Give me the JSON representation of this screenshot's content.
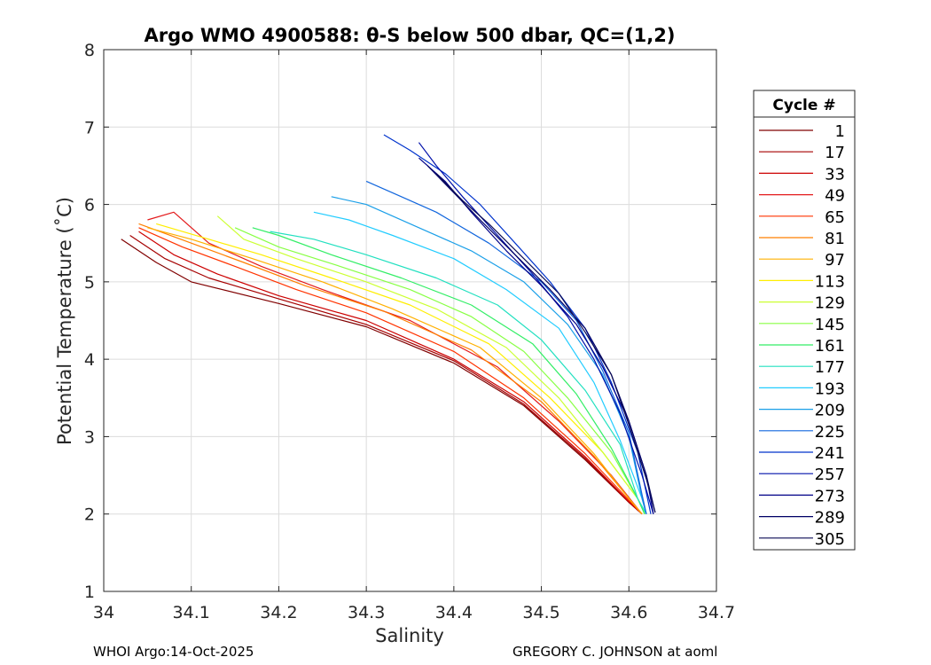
{
  "chart_data": {
    "type": "line",
    "title": "Argo WMO 4900588: θ-S below 500 dbar,  QC=(1,2)",
    "xlabel": "Salinity",
    "ylabel": "Potential Temperature (˚C)",
    "xlim": [
      34,
      34.7
    ],
    "ylim": [
      1,
      8
    ],
    "xticks": [
      34,
      34.1,
      34.2,
      34.3,
      34.4,
      34.5,
      34.6,
      34.7
    ],
    "yticks": [
      1,
      2,
      3,
      4,
      5,
      6,
      7,
      8
    ],
    "xtick_labels": [
      "34",
      "34.1",
      "34.2",
      "34.3",
      "34.4",
      "34.5",
      "34.6",
      "34.7"
    ],
    "ytick_labels": [
      "1",
      "2",
      "3",
      "4",
      "5",
      "6",
      "7",
      "8"
    ],
    "grid": true,
    "legend_title": "Cycle #",
    "legend_position": "right-outside",
    "series": [
      {
        "name": "1",
        "color": "#800000",
        "points": [
          [
            34.02,
            5.55
          ],
          [
            34.06,
            5.25
          ],
          [
            34.1,
            5.0
          ],
          [
            34.2,
            4.72
          ],
          [
            34.3,
            4.42
          ],
          [
            34.4,
            3.95
          ],
          [
            34.48,
            3.4
          ],
          [
            34.55,
            2.7
          ],
          [
            34.6,
            2.15
          ],
          [
            34.615,
            2.0
          ]
        ]
      },
      {
        "name": "17",
        "color": "#a50000",
        "points": [
          [
            34.03,
            5.6
          ],
          [
            34.07,
            5.3
          ],
          [
            34.12,
            5.05
          ],
          [
            34.2,
            4.78
          ],
          [
            34.3,
            4.45
          ],
          [
            34.4,
            3.98
          ],
          [
            34.48,
            3.42
          ],
          [
            34.55,
            2.72
          ],
          [
            34.6,
            2.15
          ],
          [
            34.615,
            2.0
          ]
        ]
      },
      {
        "name": "33",
        "color": "#cc0000",
        "points": [
          [
            34.04,
            5.65
          ],
          [
            34.08,
            5.35
          ],
          [
            34.13,
            5.1
          ],
          [
            34.2,
            4.82
          ],
          [
            34.3,
            4.5
          ],
          [
            34.4,
            4.0
          ],
          [
            34.48,
            3.45
          ],
          [
            34.55,
            2.74
          ],
          [
            34.6,
            2.16
          ],
          [
            34.615,
            2.0
          ]
        ]
      },
      {
        "name": "49",
        "color": "#e31a1c",
        "points": [
          [
            34.05,
            5.8
          ],
          [
            34.08,
            5.9
          ],
          [
            34.12,
            5.5
          ],
          [
            34.18,
            5.2
          ],
          [
            34.25,
            4.9
          ],
          [
            34.35,
            4.5
          ],
          [
            34.45,
            3.9
          ],
          [
            34.52,
            3.2
          ],
          [
            34.58,
            2.5
          ],
          [
            34.615,
            2.0
          ]
        ]
      },
      {
        "name": "65",
        "color": "#ff3300",
        "points": [
          [
            34.04,
            5.7
          ],
          [
            34.09,
            5.45
          ],
          [
            34.15,
            5.2
          ],
          [
            34.22,
            4.9
          ],
          [
            34.3,
            4.6
          ],
          [
            34.4,
            4.1
          ],
          [
            34.48,
            3.5
          ],
          [
            34.55,
            2.78
          ],
          [
            34.6,
            2.18
          ],
          [
            34.615,
            2.0
          ]
        ]
      },
      {
        "name": "81",
        "color": "#ff7f00",
        "points": [
          [
            34.04,
            5.75
          ],
          [
            34.1,
            5.5
          ],
          [
            34.16,
            5.25
          ],
          [
            34.23,
            4.95
          ],
          [
            34.32,
            4.62
          ],
          [
            34.42,
            4.12
          ],
          [
            34.5,
            3.45
          ],
          [
            34.56,
            2.75
          ],
          [
            34.6,
            2.2
          ],
          [
            34.615,
            2.0
          ]
        ]
      },
      {
        "name": "97",
        "color": "#ffb000",
        "points": [
          [
            34.05,
            5.7
          ],
          [
            34.1,
            5.55
          ],
          [
            34.17,
            5.3
          ],
          [
            34.25,
            5.0
          ],
          [
            34.33,
            4.65
          ],
          [
            34.43,
            4.15
          ],
          [
            34.5,
            3.5
          ],
          [
            34.56,
            2.78
          ],
          [
            34.6,
            2.2
          ],
          [
            34.615,
            2.0
          ]
        ]
      },
      {
        "name": "113",
        "color": "#ffee00",
        "points": [
          [
            34.06,
            5.75
          ],
          [
            34.12,
            5.55
          ],
          [
            34.18,
            5.35
          ],
          [
            34.26,
            5.05
          ],
          [
            34.35,
            4.7
          ],
          [
            34.44,
            4.2
          ],
          [
            34.51,
            3.5
          ],
          [
            34.57,
            2.8
          ],
          [
            34.61,
            2.2
          ],
          [
            34.618,
            2.0
          ]
        ]
      },
      {
        "name": "129",
        "color": "#ccff33",
        "points": [
          [
            34.13,
            5.85
          ],
          [
            34.16,
            5.55
          ],
          [
            34.22,
            5.3
          ],
          [
            34.3,
            5.0
          ],
          [
            34.38,
            4.65
          ],
          [
            34.46,
            4.15
          ],
          [
            34.52,
            3.5
          ],
          [
            34.57,
            2.8
          ],
          [
            34.61,
            2.2
          ],
          [
            34.618,
            2.0
          ]
        ]
      },
      {
        "name": "145",
        "color": "#88ff44",
        "points": [
          [
            34.15,
            5.7
          ],
          [
            34.2,
            5.45
          ],
          [
            34.27,
            5.2
          ],
          [
            34.35,
            4.9
          ],
          [
            34.42,
            4.55
          ],
          [
            34.48,
            4.1
          ],
          [
            34.53,
            3.5
          ],
          [
            34.58,
            2.8
          ],
          [
            34.61,
            2.2
          ],
          [
            34.618,
            2.0
          ]
        ]
      },
      {
        "name": "161",
        "color": "#33ee66",
        "points": [
          [
            34.17,
            5.7
          ],
          [
            34.2,
            5.6
          ],
          [
            34.26,
            5.35
          ],
          [
            34.34,
            5.05
          ],
          [
            34.42,
            4.7
          ],
          [
            34.49,
            4.2
          ],
          [
            34.54,
            3.55
          ],
          [
            34.58,
            2.85
          ],
          [
            34.61,
            2.2
          ],
          [
            34.618,
            2.0
          ]
        ]
      },
      {
        "name": "177",
        "color": "#22e0c0",
        "points": [
          [
            34.19,
            5.65
          ],
          [
            34.24,
            5.55
          ],
          [
            34.3,
            5.35
          ],
          [
            34.38,
            5.05
          ],
          [
            34.45,
            4.7
          ],
          [
            34.5,
            4.25
          ],
          [
            34.55,
            3.6
          ],
          [
            34.59,
            2.9
          ],
          [
            34.61,
            2.2
          ],
          [
            34.62,
            2.0
          ]
        ]
      },
      {
        "name": "193",
        "color": "#22ccff",
        "points": [
          [
            34.24,
            5.9
          ],
          [
            34.28,
            5.8
          ],
          [
            34.33,
            5.6
          ],
          [
            34.4,
            5.3
          ],
          [
            34.46,
            4.9
          ],
          [
            34.52,
            4.4
          ],
          [
            34.56,
            3.7
          ],
          [
            34.59,
            2.95
          ],
          [
            34.615,
            2.2
          ],
          [
            34.62,
            2.0
          ]
        ]
      },
      {
        "name": "209",
        "color": "#1a9fe8",
        "points": [
          [
            34.26,
            6.1
          ],
          [
            34.3,
            6.0
          ],
          [
            34.36,
            5.7
          ],
          [
            34.42,
            5.4
          ],
          [
            34.48,
            5.0
          ],
          [
            34.53,
            4.45
          ],
          [
            34.57,
            3.8
          ],
          [
            34.6,
            3.0
          ],
          [
            34.615,
            2.2
          ],
          [
            34.62,
            2.0
          ]
        ]
      },
      {
        "name": "225",
        "color": "#1166dd",
        "points": [
          [
            34.3,
            6.3
          ],
          [
            34.34,
            6.1
          ],
          [
            34.38,
            5.9
          ],
          [
            34.44,
            5.5
          ],
          [
            34.5,
            5.0
          ],
          [
            34.54,
            4.5
          ],
          [
            34.57,
            3.85
          ],
          [
            34.6,
            3.05
          ],
          [
            34.615,
            2.25
          ],
          [
            34.62,
            2.0
          ]
        ]
      },
      {
        "name": "241",
        "color": "#0033cc",
        "points": [
          [
            34.32,
            6.9
          ],
          [
            34.35,
            6.7
          ],
          [
            34.39,
            6.4
          ],
          [
            34.43,
            6.0
          ],
          [
            34.47,
            5.5
          ],
          [
            34.51,
            5.0
          ],
          [
            34.55,
            4.4
          ],
          [
            34.58,
            3.7
          ],
          [
            34.61,
            2.8
          ],
          [
            34.625,
            2.0
          ]
        ]
      },
      {
        "name": "257",
        "color": "#0010aa",
        "points": [
          [
            34.36,
            6.8
          ],
          [
            34.38,
            6.5
          ],
          [
            34.41,
            6.1
          ],
          [
            34.45,
            5.6
          ],
          [
            34.49,
            5.1
          ],
          [
            34.53,
            4.55
          ],
          [
            34.56,
            4.0
          ],
          [
            34.59,
            3.3
          ],
          [
            34.615,
            2.5
          ],
          [
            34.628,
            2.0
          ]
        ]
      },
      {
        "name": "273",
        "color": "#000088",
        "points": [
          [
            34.36,
            6.6
          ],
          [
            34.39,
            6.3
          ],
          [
            34.42,
            5.9
          ],
          [
            34.46,
            5.4
          ],
          [
            34.5,
            4.95
          ],
          [
            34.54,
            4.45
          ],
          [
            34.57,
            3.9
          ],
          [
            34.6,
            3.2
          ],
          [
            34.62,
            2.5
          ],
          [
            34.628,
            2.0
          ]
        ]
      },
      {
        "name": "289",
        "color": "#000066",
        "points": [
          [
            34.37,
            6.5
          ],
          [
            34.4,
            6.15
          ],
          [
            34.43,
            5.8
          ],
          [
            34.47,
            5.35
          ],
          [
            34.51,
            4.9
          ],
          [
            34.55,
            4.4
          ],
          [
            34.58,
            3.8
          ],
          [
            34.6,
            3.2
          ],
          [
            34.62,
            2.5
          ],
          [
            34.63,
            2.02
          ]
        ]
      },
      {
        "name": "305",
        "color": "#0a0a55",
        "points": [
          [
            34.38,
            6.4
          ],
          [
            34.41,
            6.05
          ],
          [
            34.44,
            5.75
          ],
          [
            34.48,
            5.3
          ],
          [
            34.52,
            4.85
          ],
          [
            34.55,
            4.35
          ],
          [
            34.58,
            3.8
          ],
          [
            34.6,
            3.15
          ],
          [
            34.62,
            2.45
          ],
          [
            34.63,
            2.02
          ]
        ]
      }
    ]
  },
  "footer": {
    "left": "WHOI Argo:14-Oct-2025",
    "right": "GREGORY C. JOHNSON at aoml"
  }
}
